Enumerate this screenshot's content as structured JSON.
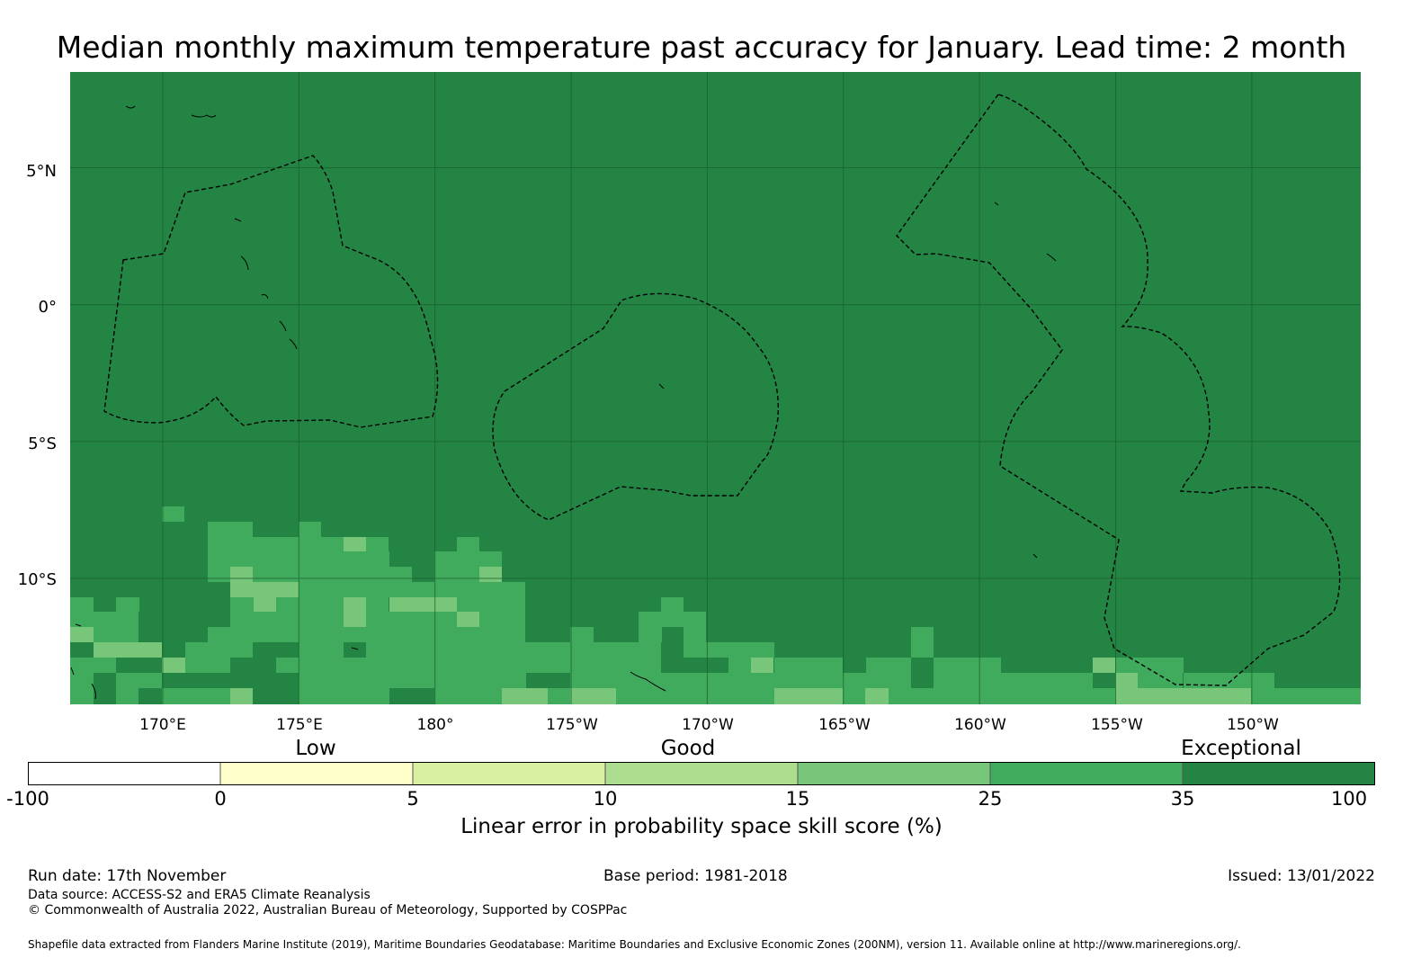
{
  "title": "Median monthly maximum temperature past accuracy for January. Lead time: 2 month",
  "colors": {
    "exceptional": "#238443",
    "band_25_35": "#41ab5d",
    "band_15_25": "#78c679",
    "band_10_15": "#addd8e",
    "band_5_10": "#d9f0a3",
    "band_0_5": "#ffffcc",
    "band_neg": "#ffffff",
    "gridline": "#1a5e2e"
  },
  "map": {
    "y_axis_labels": [
      "5°N",
      "0°",
      "5°S",
      "10°S"
    ],
    "x_axis_labels": [
      "170°E",
      "175°E",
      "180°",
      "175°W",
      "170°W",
      "165°W",
      "160°W",
      "155°W",
      "150°W"
    ],
    "lon_range": [
      166.6,
      214.0
    ],
    "lat_range": [
      -14.6,
      8.5
    ],
    "gridlines_lon": [
      170,
      175,
      180,
      185,
      190,
      195,
      200,
      205,
      210
    ],
    "gridlines_lat": [
      5,
      0,
      -5,
      -10
    ],
    "eez_boundaries": [
      "Kiribati Gilbert Islands",
      "Kiribati Phoenix Islands",
      "Kiribati Line Islands"
    ]
  },
  "colorbar": {
    "categories": [
      "Low",
      "Good",
      "Exceptional"
    ],
    "ticks": [
      "-100",
      "0",
      "5",
      "10",
      "15",
      "25",
      "35",
      "100"
    ],
    "label": "Linear error in probability space skill score (%)"
  },
  "footer": {
    "run_date": "Run date: 17th November",
    "base_period": "Base period: 1981-2018",
    "issued": "Issued: 13/01/2022",
    "data_source": "Data source: ACCESS-S2 and ERA5 Climate Reanalysis",
    "copyright": "© Commonwealth of Australia 2022, Australian Bureau of Meteorology, Supported by COSPPac",
    "shapefile": "Shapefile data extracted from Flanders Marine Institute (2019), Maritime Boundaries Geodatabase: Maritime Boundaries and Exclusive Economic Zones (200NM), version 11. Available online at http://www.marineregions.org/."
  }
}
